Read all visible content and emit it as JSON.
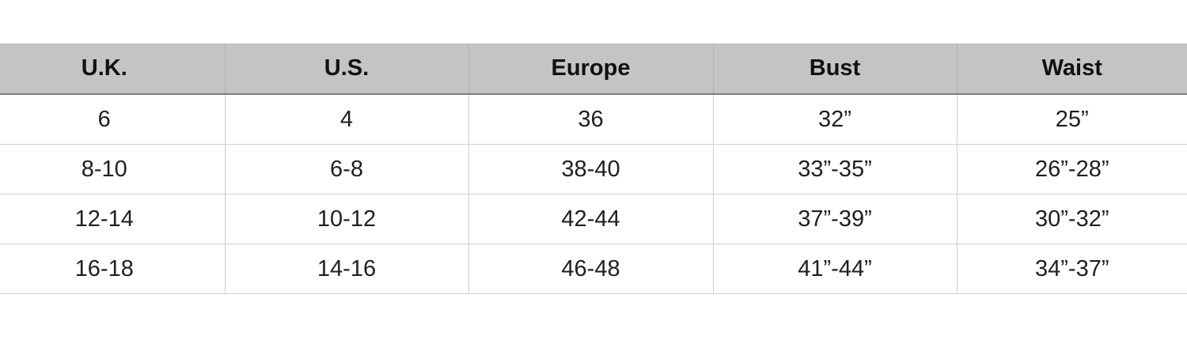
{
  "table": {
    "headers": [
      "U.K.",
      "U.S.",
      "Europe",
      "Bust",
      "Waist"
    ],
    "rows": [
      [
        "6",
        "4",
        "36",
        "32”",
        "25”"
      ],
      [
        "8-10",
        "6-8",
        "38-40",
        "33”-35”",
        "26”-28”"
      ],
      [
        "12-14",
        "10-12",
        "42-44",
        "37”-39”",
        "30”-32”"
      ],
      [
        "16-18",
        "14-16",
        "46-48",
        "41”-44”",
        "34”-37”"
      ]
    ]
  },
  "colors": {
    "header_background": "#c4c4c4",
    "header_rule": "#7d7d7d",
    "grid_lines": "#cfcfcf"
  }
}
